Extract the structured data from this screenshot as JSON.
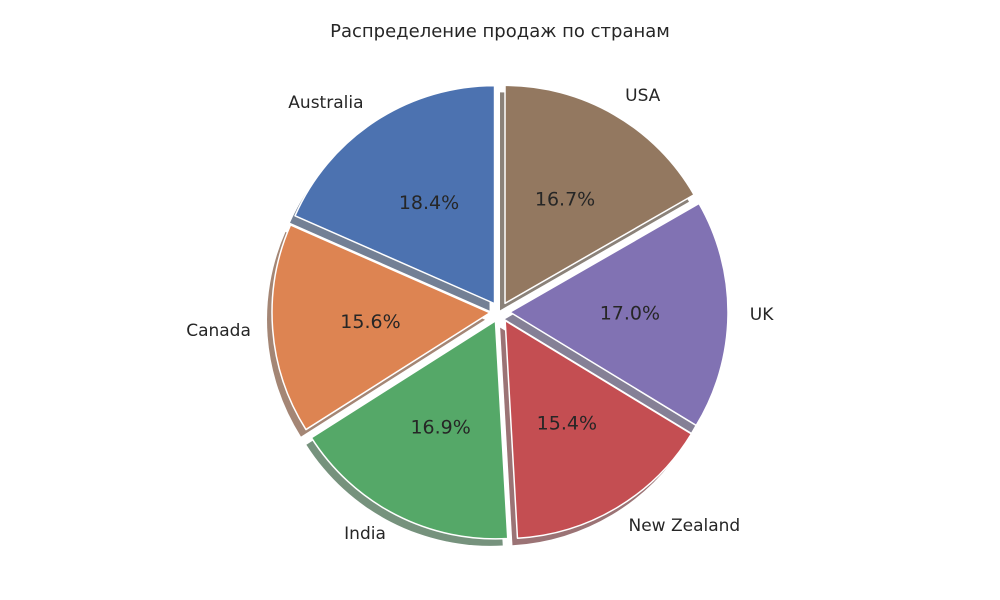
{
  "chart_data": {
    "type": "pie",
    "title": "Распределение продаж по странам",
    "categories": [
      "Australia",
      "Canada",
      "India",
      "New Zealand",
      "UK",
      "USA"
    ],
    "values": [
      18.4,
      15.6,
      16.9,
      15.4,
      17.0,
      16.7
    ],
    "percent_labels": [
      "18.4%",
      "15.6%",
      "16.9%",
      "15.4%",
      "17.0%",
      "16.7%"
    ],
    "colors": [
      "#4c72b0",
      "#dd8452",
      "#55a868",
      "#c44e52",
      "#8172b3",
      "#937860"
    ],
    "start_angle_deg": 90,
    "direction": "counterclockwise",
    "exploded": true,
    "shadow": true
  }
}
